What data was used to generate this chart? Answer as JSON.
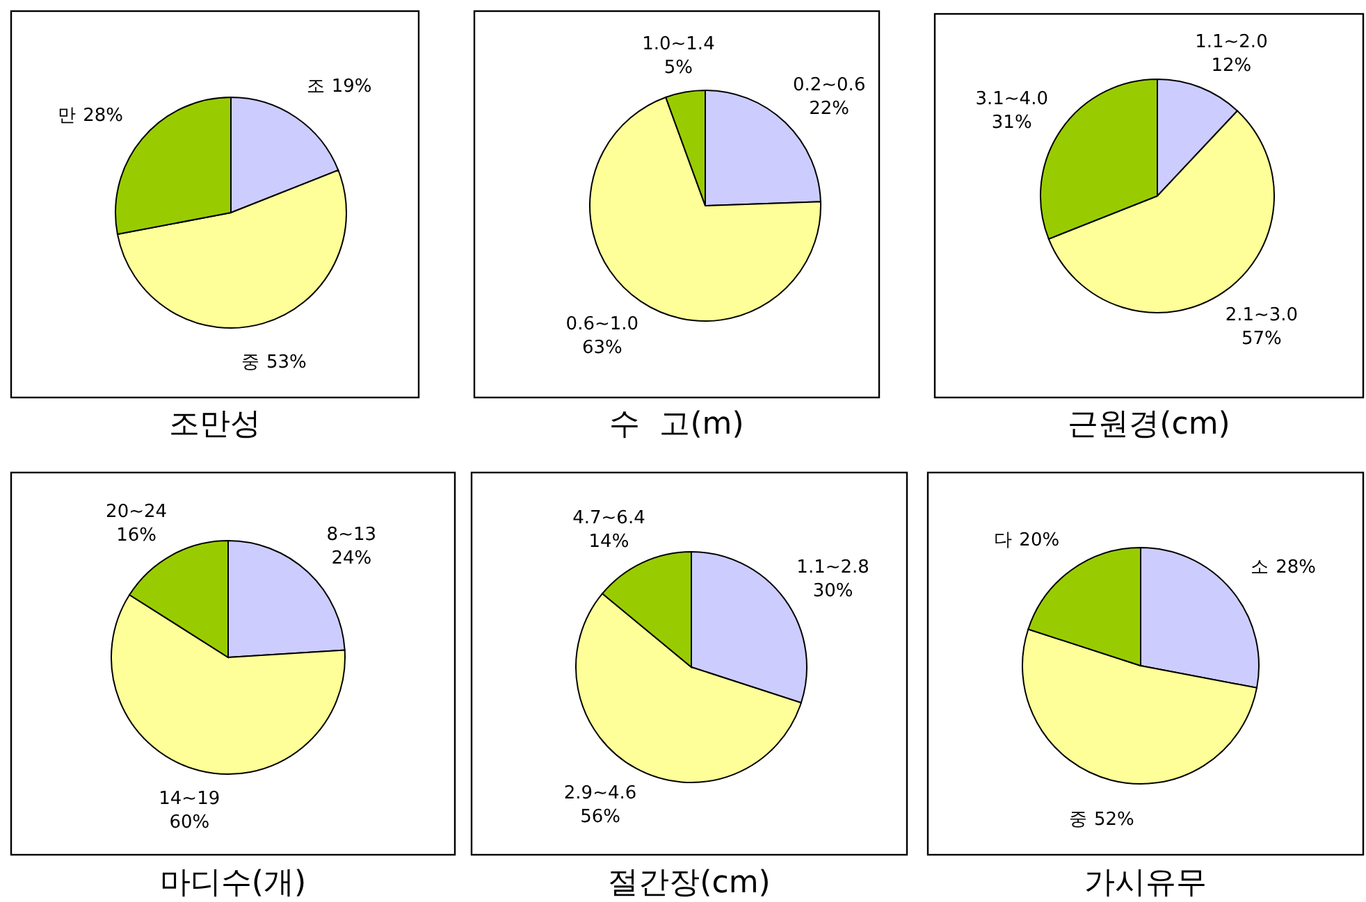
{
  "chart_data": [
    {
      "type": "pie",
      "title": "조만성",
      "categories": [
        "조",
        "중",
        "만"
      ],
      "values": [
        19,
        53,
        28
      ],
      "value_labels": [
        "19%",
        "53%",
        "28%"
      ],
      "colors": [
        "#ccccff",
        "#ffff99",
        "#99cc00"
      ]
    },
    {
      "type": "pie",
      "title": "수  고(m)",
      "categories": [
        "0.2~0.6",
        "0.6~1.0",
        "1.0~1.4"
      ],
      "values": [
        22,
        63,
        5
      ],
      "value_labels": [
        "22%",
        "63%",
        "5%"
      ],
      "colors": [
        "#ccccff",
        "#ffff99",
        "#99cc00"
      ]
    },
    {
      "type": "pie",
      "title": "근원경(cm)",
      "categories": [
        "1.1~2.0",
        "2.1~3.0",
        "3.1~4.0"
      ],
      "values": [
        12,
        57,
        31
      ],
      "value_labels": [
        "12%",
        "57%",
        "31%"
      ],
      "colors": [
        "#ccccff",
        "#ffff99",
        "#99cc00"
      ]
    },
    {
      "type": "pie",
      "title": "마디수(개)",
      "categories": [
        "8~13",
        "14~19",
        "20~24"
      ],
      "values": [
        24,
        60,
        16
      ],
      "value_labels": [
        "24%",
        "60%",
        "16%"
      ],
      "colors": [
        "#ccccff",
        "#ffff99",
        "#99cc00"
      ]
    },
    {
      "type": "pie",
      "title": "절간장(cm)",
      "categories": [
        "1.1~2.8",
        "2.9~4.6",
        "4.7~6.4"
      ],
      "values": [
        30,
        56,
        14
      ],
      "value_labels": [
        "30%",
        "56%",
        "14%"
      ],
      "colors": [
        "#ccccff",
        "#ffff99",
        "#99cc00"
      ]
    },
    {
      "type": "pie",
      "title": "가시유무",
      "categories": [
        "소",
        "중",
        "다"
      ],
      "values": [
        28,
        52,
        20
      ],
      "value_labels": [
        "28%",
        "52%",
        "20%"
      ],
      "colors": [
        "#ccccff",
        "#ffff99",
        "#99cc00"
      ]
    }
  ]
}
